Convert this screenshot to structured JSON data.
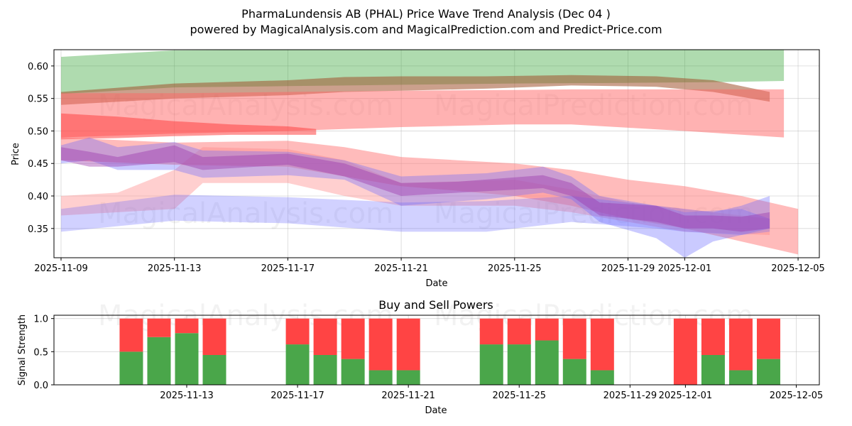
{
  "header": {
    "title_line1": "PharmaLundensis AB (PHAL) Price Wave Trend Analysis (Dec 04 )",
    "title_line2": "powered by MagicalAnalysis.com and MagicalPrediction.com and Predict-Price.com"
  },
  "watermarks": {
    "left": "MagicalAnalysis.com",
    "right": "MagicalPrediction.com"
  },
  "colors": {
    "green_band": "#2ca02c",
    "brown_band": "#a0522d",
    "red_band": "#ff6666",
    "blue_band": "#6666ff",
    "purple_band": "#9933aa",
    "buy": "#4aa64a",
    "sell": "#ff4444"
  },
  "chart_data": [
    {
      "type": "area",
      "title": "",
      "xlabel": "Date",
      "ylabel": "Price",
      "xlim": [
        "2025-11-08 18:00",
        "2025-12-05 18:00"
      ],
      "ylim": [
        0.305,
        0.625
      ],
      "x_ticks": [
        "2025-11-09",
        "2025-11-13",
        "2025-11-17",
        "2025-11-21",
        "2025-11-25",
        "2025-11-29",
        "2025-12-01",
        "2025-12-05"
      ],
      "y_ticks": [
        "0.35",
        "0.40",
        "0.45",
        "0.50",
        "0.55",
        "0.60"
      ],
      "grid": true,
      "series": [
        {
          "name": "green band",
          "color": "#2ca02c",
          "opacity": 0.38,
          "x": [
            "2025-11-09",
            "2025-11-13",
            "2025-11-17",
            "2025-11-21",
            "2025-11-25",
            "2025-11-29",
            "2025-12-02",
            "2025-12-04 12:00"
          ],
          "upper": [
            0.614,
            0.624,
            0.625,
            0.625,
            0.625,
            0.625,
            0.625,
            0.625
          ],
          "lower": [
            0.557,
            0.567,
            0.569,
            0.571,
            0.573,
            0.574,
            0.575,
            0.577
          ]
        },
        {
          "name": "brown band",
          "color": "#a0522d",
          "opacity": 0.55,
          "x": [
            "2025-11-09",
            "2025-11-13",
            "2025-11-17",
            "2025-11-19",
            "2025-11-21",
            "2025-11-24",
            "2025-11-27",
            "2025-11-30",
            "2025-12-02",
            "2025-12-04"
          ],
          "upper": [
            0.56,
            0.573,
            0.578,
            0.583,
            0.584,
            0.584,
            0.586,
            0.584,
            0.578,
            0.56
          ],
          "lower": [
            0.54,
            0.55,
            0.555,
            0.56,
            0.562,
            0.565,
            0.57,
            0.568,
            0.56,
            0.545
          ]
        },
        {
          "name": "wide red band",
          "color": "#ff6666",
          "opacity": 0.5,
          "x": [
            "2025-11-09",
            "2025-11-13",
            "2025-11-17",
            "2025-11-21",
            "2025-11-25",
            "2025-11-27",
            "2025-11-29",
            "2025-12-01",
            "2025-12-04 12:00"
          ],
          "upper": [
            0.558,
            0.558,
            0.56,
            0.562,
            0.563,
            0.564,
            0.564,
            0.564,
            0.564
          ],
          "lower": [
            0.49,
            0.496,
            0.5,
            0.506,
            0.51,
            0.51,
            0.505,
            0.5,
            0.49
          ]
        },
        {
          "name": "red band high",
          "color": "#ff4444",
          "opacity": 0.55,
          "x": [
            "2025-11-09",
            "2025-11-11",
            "2025-11-13",
            "2025-11-15",
            "2025-11-17",
            "2025-11-18"
          ],
          "upper": [
            0.527,
            0.522,
            0.515,
            0.51,
            0.507,
            0.503
          ],
          "lower": [
            0.487,
            0.489,
            0.492,
            0.494,
            0.494,
            0.494
          ]
        },
        {
          "name": "red downtrend band",
          "color": "#ff7777",
          "opacity": 0.5,
          "x": [
            "2025-11-09",
            "2025-11-13",
            "2025-11-17",
            "2025-11-19",
            "2025-11-21",
            "2025-11-23",
            "2025-11-25",
            "2025-11-27",
            "2025-11-29",
            "2025-12-01",
            "2025-12-03",
            "2025-12-05"
          ],
          "upper": [
            0.49,
            0.482,
            0.485,
            0.475,
            0.46,
            0.455,
            0.45,
            0.44,
            0.425,
            0.415,
            0.4,
            0.38
          ],
          "lower": [
            0.455,
            0.448,
            0.445,
            0.43,
            0.415,
            0.408,
            0.4,
            0.385,
            0.365,
            0.35,
            0.33,
            0.31
          ]
        },
        {
          "name": "red secondary band",
          "color": "#ff8888",
          "opacity": 0.4,
          "x": [
            "2025-11-09",
            "2025-11-11",
            "2025-11-13",
            "2025-11-14",
            "2025-11-17",
            "2025-11-19",
            "2025-11-21",
            "2025-11-25",
            "2025-11-27",
            "2025-11-29",
            "2025-12-01",
            "2025-12-04"
          ],
          "upper": [
            0.4,
            0.405,
            0.44,
            0.475,
            0.472,
            0.455,
            0.42,
            0.425,
            0.41,
            0.39,
            0.38,
            0.365
          ],
          "lower": [
            0.37,
            0.375,
            0.38,
            0.42,
            0.42,
            0.4,
            0.385,
            0.385,
            0.375,
            0.36,
            0.345,
            0.34
          ]
        },
        {
          "name": "blue lower band",
          "color": "#6666ff",
          "opacity": 0.3,
          "x": [
            "2025-11-09",
            "2025-11-13",
            "2025-11-17",
            "2025-11-21",
            "2025-11-24",
            "2025-11-27",
            "2025-11-30",
            "2025-12-01",
            "2025-12-03",
            "2025-12-04"
          ],
          "upper": [
            0.38,
            0.402,
            0.398,
            0.39,
            0.392,
            0.4,
            0.385,
            0.375,
            0.38,
            0.365
          ],
          "lower": [
            0.345,
            0.362,
            0.358,
            0.345,
            0.345,
            0.36,
            0.35,
            0.345,
            0.34,
            0.345
          ]
        },
        {
          "name": "blue main band",
          "color": "#6666ff",
          "opacity": 0.35,
          "x": [
            "2025-11-09",
            "2025-11-10",
            "2025-11-11",
            "2025-11-13",
            "2025-11-14",
            "2025-11-17",
            "2025-11-19",
            "2025-11-21",
            "2025-11-24",
            "2025-11-26",
            "2025-11-27",
            "2025-11-28",
            "2025-11-30",
            "2025-12-01",
            "2025-12-02",
            "2025-12-03",
            "2025-12-04"
          ],
          "upper": [
            0.478,
            0.49,
            0.475,
            0.483,
            0.47,
            0.468,
            0.455,
            0.43,
            0.435,
            0.445,
            0.43,
            0.4,
            0.385,
            0.38,
            0.375,
            0.385,
            0.4
          ],
          "lower": [
            0.45,
            0.455,
            0.44,
            0.44,
            0.428,
            0.432,
            0.425,
            0.385,
            0.395,
            0.405,
            0.395,
            0.36,
            0.335,
            0.305,
            0.33,
            0.34,
            0.35
          ]
        },
        {
          "name": "purple trend band",
          "color": "#9933aa",
          "opacity": 0.4,
          "x": [
            "2025-11-09",
            "2025-11-10",
            "2025-11-11",
            "2025-11-13",
            "2025-11-14",
            "2025-11-17",
            "2025-11-19",
            "2025-11-21",
            "2025-11-23",
            "2025-11-26",
            "2025-11-27",
            "2025-11-28",
            "2025-11-30",
            "2025-12-01",
            "2025-12-02",
            "2025-12-03",
            "2025-12-04"
          ],
          "upper": [
            0.475,
            0.468,
            0.46,
            0.478,
            0.46,
            0.465,
            0.45,
            0.42,
            0.422,
            0.432,
            0.42,
            0.39,
            0.385,
            0.37,
            0.37,
            0.368,
            0.375
          ],
          "lower": [
            0.455,
            0.445,
            0.445,
            0.452,
            0.44,
            0.448,
            0.43,
            0.4,
            0.405,
            0.412,
            0.4,
            0.37,
            0.36,
            0.35,
            0.35,
            0.345,
            0.35
          ]
        }
      ]
    },
    {
      "type": "bar",
      "title": "Buy and Sell Powers",
      "xlabel": "Date",
      "ylabel": "Signal Strength",
      "ylim": [
        0,
        1.05
      ],
      "y_ticks": [
        "0.0",
        "0.5",
        "1.0"
      ],
      "x_ticks": [
        "2025-11-13",
        "2025-11-17",
        "2025-11-21",
        "2025-11-25",
        "2025-11-29",
        "2025-12-01",
        "2025-12-05"
      ],
      "grid": true,
      "categories": [
        "2025-11-11",
        "2025-11-12",
        "2025-11-13",
        "2025-11-14",
        "2025-11-17",
        "2025-11-18",
        "2025-11-19",
        "2025-11-20",
        "2025-11-21",
        "2025-11-24",
        "2025-11-25",
        "2025-11-26",
        "2025-11-27",
        "2025-11-28",
        "2025-12-01",
        "2025-12-02",
        "2025-12-03",
        "2025-12-04"
      ],
      "series": [
        {
          "name": "Buy",
          "color": "#4aa64a",
          "values": [
            0.5,
            0.72,
            0.78,
            0.45,
            0.61,
            0.45,
            0.39,
            0.22,
            0.22,
            0.61,
            0.61,
            0.67,
            0.39,
            0.22,
            0.0,
            0.45,
            0.22,
            0.39
          ]
        },
        {
          "name": "Sell",
          "color": "#ff4444",
          "values": [
            0.5,
            0.28,
            0.22,
            0.55,
            0.39,
            0.55,
            0.61,
            0.78,
            0.78,
            0.39,
            0.39,
            0.33,
            0.61,
            0.78,
            1.0,
            0.55,
            0.78,
            0.61
          ]
        }
      ]
    }
  ]
}
